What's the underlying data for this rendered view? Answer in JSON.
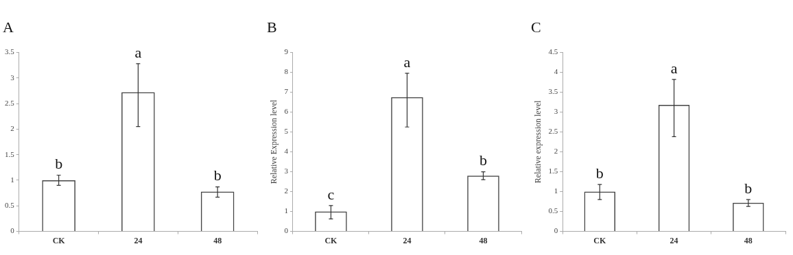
{
  "chart_data": [
    {
      "type": "bar",
      "title": "A",
      "categories": [
        "CK",
        "24",
        "48"
      ],
      "values": [
        1.0,
        2.72,
        0.78
      ],
      "errors": [
        [
          0.9,
          1.1
        ],
        [
          2.05,
          3.28
        ],
        [
          0.67,
          0.87
        ]
      ],
      "color": "#444444",
      "ylim": [
        0,
        3.5
      ],
      "yticks": [
        0,
        0.5,
        1,
        1.5,
        2,
        2.5,
        3,
        3.5
      ],
      "grid": false,
      "legend": false,
      "annotations": [
        {
          "text": "b",
          "x": "CK",
          "y": 1.1
        },
        {
          "text": "a",
          "x": "24",
          "y": 3.28
        },
        {
          "text": "b",
          "x": "48",
          "y": 0.87
        }
      ]
    },
    {
      "type": "bar",
      "title": "B",
      "ylabel": "Relative Expression level",
      "categories": [
        "CK",
        "24",
        "48"
      ],
      "values": [
        1.0,
        6.75,
        2.8
      ],
      "errors": [
        [
          0.63,
          1.3
        ],
        [
          5.25,
          7.95
        ],
        [
          2.6,
          3.0
        ]
      ],
      "color": "#444444",
      "ylim": [
        0,
        9
      ],
      "yticks": [
        0,
        1,
        2,
        3,
        4,
        5,
        6,
        7,
        8,
        9
      ],
      "grid": false,
      "legend": false,
      "annotations": [
        {
          "text": "c",
          "x": "CK",
          "y": 1.3
        },
        {
          "text": "a",
          "x": "24",
          "y": 7.95
        },
        {
          "text": "b",
          "x": "48",
          "y": 3.0
        }
      ]
    },
    {
      "type": "bar",
      "title": "C",
      "ylabel": "Relative expression level",
      "categories": [
        "CK",
        "24",
        "48"
      ],
      "values": [
        1.0,
        3.18,
        0.72
      ],
      "errors": [
        [
          0.8,
          1.18
        ],
        [
          2.38,
          3.82
        ],
        [
          0.63,
          0.8
        ]
      ],
      "color": "#444444",
      "ylim": [
        0,
        4.5
      ],
      "yticks": [
        0,
        0.5,
        1,
        1.5,
        2,
        2.5,
        3,
        3.5,
        4,
        4.5
      ],
      "grid": false,
      "legend": false,
      "annotations": [
        {
          "text": "b",
          "x": "CK",
          "y": 1.18
        },
        {
          "text": "a",
          "x": "24",
          "y": 3.82
        },
        {
          "text": "b",
          "x": "48",
          "y": 0.8
        }
      ]
    }
  ]
}
